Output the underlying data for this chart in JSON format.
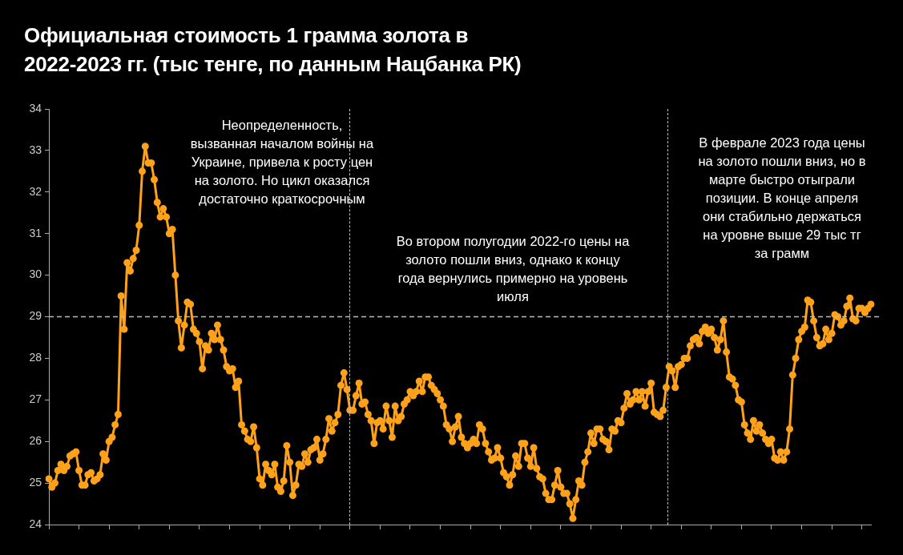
{
  "chart_data": {
    "type": "line",
    "title": "Официальная стоимость 1 грамма золота в\n2022-2023 гг. (тыс тенге, по данным Нацбанка РК)",
    "annotations": [
      "Неопределенность,\nвызванная началом войны на\nУкраине, привела к росту цен\nна золото. Но цикл оказался\nдостаточно краткосрочным",
      "Во втором полугодии 2022-го цены на\nзолото пошли вниз, однако к концу\nгода вернулись примерно на уровень\nиюля",
      "В феврале 2023 года цены\nна золото пошли вниз, но в\nмарте быстро отыграли\nпозиции. В конце апреля\nони стабильно держаться\nна уровне выше 29 тыс тг\nза грамм"
    ],
    "categories": [
      null,
      null,
      null,
      null,
      null,
      null,
      null,
      null,
      null,
      null,
      null,
      null,
      null,
      null,
      null,
      null,
      null,
      null,
      null,
      null,
      null,
      null,
      null,
      null,
      null,
      null,
      null,
      null,
      null,
      null,
      null,
      null,
      null,
      null,
      null,
      null,
      null,
      null,
      null,
      null,
      null,
      null,
      null,
      null,
      null,
      null,
      null,
      null,
      null,
      null,
      null,
      null,
      null,
      null,
      null,
      null,
      null,
      null,
      null,
      null,
      null,
      null,
      null,
      null,
      null,
      null,
      null,
      null,
      null,
      null,
      null,
      null,
      null,
      null,
      null,
      null,
      null,
      null,
      null,
      null,
      null,
      null,
      null,
      null,
      null,
      null,
      null,
      null,
      null,
      null,
      null,
      null,
      null,
      null,
      null,
      null,
      null,
      null,
      null,
      null,
      null,
      null,
      null,
      null,
      null,
      null,
      null,
      null,
      null,
      null,
      null,
      null,
      null,
      null,
      null,
      null,
      null,
      null,
      null,
      null,
      null,
      null,
      null,
      null,
      null,
      null,
      null,
      null,
      null,
      null,
      null,
      null,
      null,
      null,
      null,
      null,
      null,
      null,
      null,
      null,
      null,
      null,
      null,
      null,
      null,
      null,
      null,
      null,
      null,
      null,
      null,
      null,
      null,
      null,
      null,
      null,
      null,
      null,
      null,
      null,
      null,
      null,
      null,
      null,
      null,
      null,
      null,
      null,
      null,
      null,
      null,
      null,
      null,
      null,
      null,
      null,
      null,
      null,
      null,
      null,
      null,
      null,
      null,
      null,
      null,
      null,
      null,
      null,
      null,
      null,
      null,
      null,
      null,
      null,
      null,
      null,
      null,
      null,
      null,
      null,
      null,
      null,
      null,
      null,
      null,
      null,
      null,
      null,
      null,
      null,
      null,
      null,
      null,
      null,
      null,
      null,
      null,
      null,
      null,
      null,
      null,
      null,
      null,
      null,
      null,
      null,
      null,
      null,
      null,
      null,
      null,
      null,
      null,
      null,
      null,
      null,
      null,
      null,
      null,
      null,
      null,
      null,
      null,
      null,
      null,
      null,
      null,
      null,
      null,
      null,
      null,
      null,
      null,
      null,
      null,
      null,
      null,
      null,
      null,
      null,
      null,
      null,
      null,
      null,
      null,
      null,
      null,
      null,
      null,
      null,
      null,
      null,
      null,
      null
    ],
    "series": [
      {
        "color": "#ffa21a",
        "values": [
          25.1,
          24.9,
          25.0,
          25.3,
          25.45,
          25.3,
          25.4,
          25.65,
          25.7,
          25.75,
          25.3,
          24.95,
          24.95,
          25.2,
          25.25,
          25.05,
          25.1,
          25.2,
          25.7,
          25.55,
          26.0,
          26.1,
          26.4,
          26.65,
          29.5,
          28.7,
          30.3,
          30.1,
          30.4,
          30.6,
          31.2,
          32.5,
          33.1,
          32.7,
          32.7,
          32.3,
          31.75,
          31.4,
          31.6,
          31.4,
          31.0,
          31.1,
          30.0,
          28.9,
          28.25,
          28.8,
          29.35,
          29.3,
          28.7,
          28.6,
          28.4,
          27.75,
          28.3,
          28.2,
          28.6,
          28.45,
          28.8,
          28.45,
          28.2,
          27.8,
          27.7,
          27.75,
          27.3,
          27.45,
          26.4,
          26.25,
          26.05,
          26.0,
          26.35,
          25.85,
          25.1,
          24.95,
          25.45,
          25.3,
          25.2,
          25.45,
          24.9,
          24.8,
          25.05,
          25.9,
          25.5,
          24.7,
          24.95,
          25.45,
          25.4,
          25.7,
          25.5,
          25.8,
          25.85,
          26.05,
          25.55,
          25.7,
          26.05,
          26.55,
          26.25,
          26.45,
          26.65,
          27.35,
          27.65,
          27.25,
          26.75,
          26.75,
          27.1,
          27.4,
          26.9,
          26.95,
          26.65,
          26.5,
          25.95,
          26.45,
          26.5,
          26.3,
          26.85,
          26.5,
          26.1,
          26.85,
          26.5,
          26.6,
          26.9,
          27.0,
          27.2,
          27.1,
          27.2,
          27.45,
          27.2,
          27.55,
          27.55,
          27.35,
          27.25,
          27.15,
          27.0,
          26.85,
          26.4,
          26.3,
          26.0,
          26.35,
          26.6,
          26.1,
          25.95,
          25.85,
          25.95,
          26.05,
          25.95,
          26.4,
          26.3,
          25.95,
          25.75,
          25.55,
          25.6,
          25.85,
          25.6,
          25.25,
          25.15,
          24.95,
          25.2,
          25.65,
          25.4,
          25.95,
          25.95,
          25.6,
          25.4,
          25.85,
          25.35,
          25.15,
          25.1,
          24.75,
          24.6,
          24.6,
          24.95,
          25.3,
          24.9,
          24.75,
          24.75,
          24.5,
          24.15,
          24.6,
          25.05,
          24.95,
          25.5,
          25.75,
          26.2,
          25.95,
          26.3,
          26.3,
          26.05,
          26.0,
          25.8,
          26.3,
          26.25,
          26.5,
          26.45,
          26.8,
          27.15,
          26.9,
          27.0,
          27.2,
          27.0,
          27.2,
          26.85,
          27.2,
          27.4,
          26.7,
          26.65,
          26.6,
          26.75,
          27.3,
          27.8,
          27.7,
          27.3,
          27.8,
          27.85,
          28.0,
          28.0,
          28.3,
          28.45,
          28.5,
          28.35,
          28.65,
          28.75,
          28.6,
          28.7,
          28.5,
          28.2,
          28.45,
          28.9,
          28.15,
          27.55,
          27.5,
          27.35,
          27.0,
          26.95,
          26.4,
          26.2,
          26.05,
          26.5,
          26.25,
          26.4,
          26.2,
          26.05,
          25.95,
          26.05,
          25.6,
          25.55,
          25.75,
          25.55,
          25.75,
          26.3,
          27.6,
          28.0,
          28.45,
          28.65,
          28.75,
          29.4,
          29.35,
          28.9,
          28.5,
          28.3,
          28.35,
          28.7,
          28.45,
          28.6,
          29.05,
          29.0,
          28.8,
          28.9,
          29.25,
          29.45,
          28.95,
          28.9,
          29.2,
          29.2,
          29.1,
          29.2,
          29.3
        ]
      }
    ],
    "ylim": [
      24,
      34
    ],
    "yticks": [
      24,
      25,
      26,
      27,
      28,
      29,
      30,
      31,
      32,
      33,
      34
    ],
    "tick_labels": "y",
    "marker": "circle",
    "line_style": "solid",
    "ref_lines": [
      {
        "axis": "y",
        "value": 29,
        "color": "#bbbbbb",
        "line_style": "dashed"
      }
    ]
  }
}
